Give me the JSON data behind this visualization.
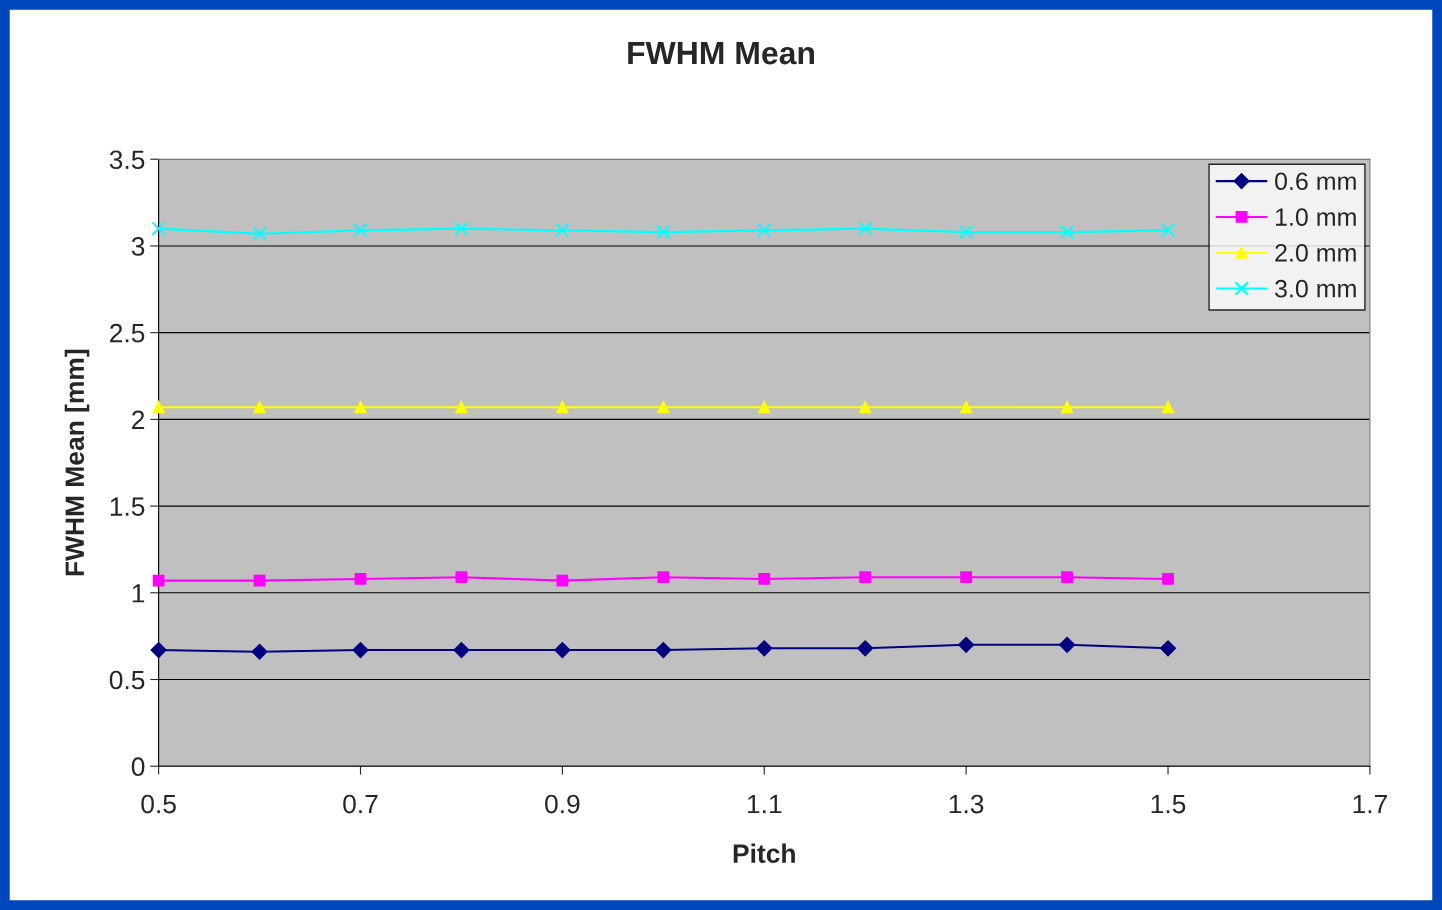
{
  "chart_data": {
    "type": "line",
    "title": "FWHM Mean",
    "xlabel": "Pitch",
    "ylabel": "FWHM Mean [mm]",
    "x": [
      0.5,
      0.6,
      0.7,
      0.8,
      0.9,
      1.0,
      1.1,
      1.2,
      1.3,
      1.4,
      1.5
    ],
    "series": [
      {
        "name": "0.6 mm",
        "color": "#000080",
        "marker": "diamond",
        "values": [
          0.67,
          0.66,
          0.67,
          0.67,
          0.67,
          0.67,
          0.68,
          0.68,
          0.7,
          0.7,
          0.68
        ]
      },
      {
        "name": "1.0 mm",
        "color": "#ff00ff",
        "marker": "square",
        "values": [
          1.07,
          1.07,
          1.08,
          1.09,
          1.07,
          1.09,
          1.08,
          1.09,
          1.09,
          1.09,
          1.08
        ]
      },
      {
        "name": "2.0 mm",
        "color": "#ffff00",
        "marker": "triangle",
        "values": [
          2.07,
          2.07,
          2.07,
          2.07,
          2.07,
          2.07,
          2.07,
          2.07,
          2.07,
          2.07,
          2.07
        ]
      },
      {
        "name": "3.0 mm",
        "color": "#00ffff",
        "marker": "cross",
        "values": [
          3.1,
          3.07,
          3.09,
          3.1,
          3.09,
          3.08,
          3.09,
          3.1,
          3.08,
          3.08,
          3.09
        ]
      }
    ],
    "xlim": [
      0.5,
      1.7
    ],
    "xticks": [
      0.5,
      0.7,
      0.9,
      1.1,
      1.3,
      1.5,
      1.7
    ],
    "ylim": [
      0,
      3.5
    ],
    "yticks": [
      0,
      0.5,
      1,
      1.5,
      2,
      2.5,
      3,
      3.5
    ],
    "grid": "y",
    "legend": "top right",
    "line_style": "solid"
  }
}
